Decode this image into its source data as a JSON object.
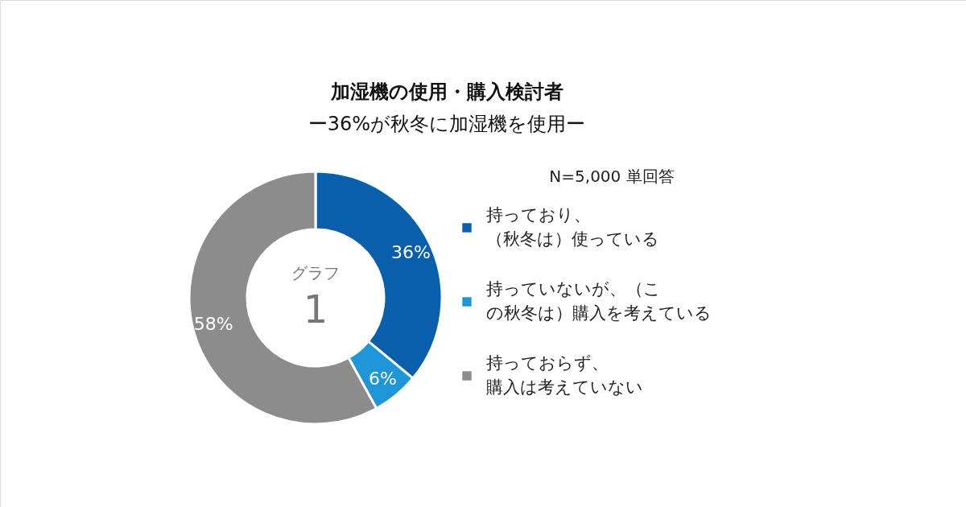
{
  "chart_data": {
    "type": "donut",
    "title": "加湿機の使用・購入検討者",
    "subtitle": "ー36%が秋冬に加湿機を使用ー",
    "categories": [
      "持っており、（秋冬は）使っている",
      "持っていないが、（この秋冬は）購入を考えている",
      "持っておらず、購入は考えていない"
    ],
    "values": [
      36,
      6,
      58
    ],
    "colors": [
      "#0a5fad",
      "#1e96d8",
      "#8c8c8c"
    ],
    "value_labels": [
      "36%",
      "6%",
      "58%"
    ],
    "annotations": [
      "N=5,000 単回答",
      "グラフ",
      "1"
    ],
    "legend": "right"
  }
}
